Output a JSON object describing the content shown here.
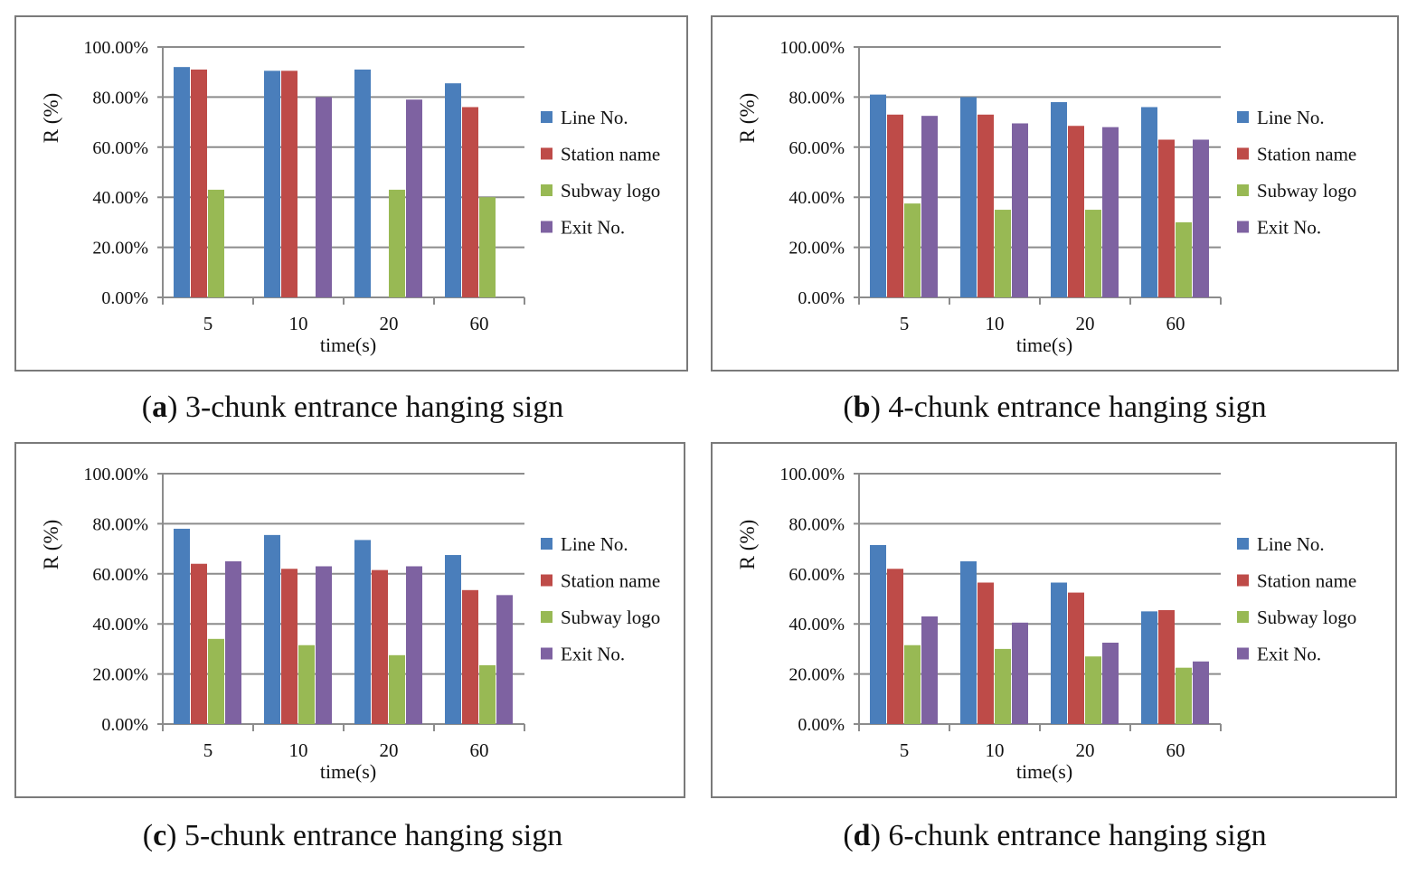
{
  "colors": {
    "line_no": "#4a7ebb",
    "station_name": "#be4b48",
    "subway_logo": "#98b954",
    "exit_no": "#7e62a1",
    "grid": "#8c8c8c",
    "frame": "#7a7a7a"
  },
  "panels": [
    {
      "caption_letter": "a",
      "caption_paren_open": "(",
      "caption_paren_close": ")",
      "caption_text": " 3-chunk entrance hanging sign",
      "chart_data": {
        "type": "bar",
        "title": "",
        "xlabel": "time(s)",
        "ylabel": "R (%)",
        "ylim": [
          0,
          100
        ],
        "yticks": [
          "0.00%",
          "20.00%",
          "40.00%",
          "60.00%",
          "80.00%",
          "100.00%"
        ],
        "categories": [
          "5",
          "10",
          "20",
          "60"
        ],
        "series": [
          {
            "name": "Line No.",
            "color": "#4a7ebb",
            "values": [
              92,
              90.5,
              91,
              85.5
            ]
          },
          {
            "name": "Station name",
            "color": "#be4b48",
            "values": [
              91,
              90.5,
              0,
              76
            ]
          },
          {
            "name": "Subway logo",
            "color": "#98b954",
            "values": [
              43,
              0,
              43,
              40
            ]
          },
          {
            "name": "Exit No.",
            "color": "#7e62a1",
            "values": [
              0,
              80,
              79,
              0
            ]
          }
        ],
        "legend": "right"
      }
    },
    {
      "caption_letter": "b",
      "caption_paren_open": "(",
      "caption_paren_close": ")",
      "caption_text": " 4-chunk entrance hanging sign",
      "chart_data": {
        "type": "bar",
        "title": "",
        "xlabel": "time(s)",
        "ylabel": "R (%)",
        "ylim": [
          0,
          100
        ],
        "yticks": [
          "0.00%",
          "20.00%",
          "40.00%",
          "60.00%",
          "80.00%",
          "100.00%"
        ],
        "categories": [
          "5",
          "10",
          "20",
          "60"
        ],
        "series": [
          {
            "name": "Line No.",
            "color": "#4a7ebb",
            "values": [
              81,
              80,
              78,
              76
            ]
          },
          {
            "name": "Station name",
            "color": "#be4b48",
            "values": [
              73,
              73,
              68.5,
              63
            ]
          },
          {
            "name": "Subway logo",
            "color": "#98b954",
            "values": [
              37.5,
              35,
              35,
              30
            ]
          },
          {
            "name": "Exit No.",
            "color": "#7e62a1",
            "values": [
              72.5,
              69.5,
              68,
              63
            ]
          }
        ],
        "legend": "right"
      }
    },
    {
      "caption_letter": "c",
      "caption_paren_open": "(",
      "caption_paren_close": ")",
      "caption_text": " 5-chunk entrance hanging sign",
      "chart_data": {
        "type": "bar",
        "title": "",
        "xlabel": "time(s)",
        "ylabel": "R (%)",
        "ylim": [
          0,
          100
        ],
        "yticks": [
          "0.00%",
          "20.00%",
          "40.00%",
          "60.00%",
          "80.00%",
          "100.00%"
        ],
        "categories": [
          "5",
          "10",
          "20",
          "60"
        ],
        "series": [
          {
            "name": "Line No.",
            "color": "#4a7ebb",
            "values": [
              78,
              75.5,
              73.5,
              67.5
            ]
          },
          {
            "name": "Station name",
            "color": "#be4b48",
            "values": [
              64,
              62,
              61.5,
              53.5
            ]
          },
          {
            "name": "Subway logo",
            "color": "#98b954",
            "values": [
              34,
              31.5,
              27.5,
              23.5
            ]
          },
          {
            "name": "Exit No.",
            "color": "#7e62a1",
            "values": [
              65,
              63,
              63,
              51.5
            ]
          }
        ],
        "legend": "right"
      }
    },
    {
      "caption_letter": "d",
      "caption_paren_open": "(",
      "caption_paren_close": ")",
      "caption_text": " 6-chunk entrance hanging sign",
      "chart_data": {
        "type": "bar",
        "title": "",
        "xlabel": "time(s)",
        "ylabel": "R (%)",
        "ylim": [
          0,
          100
        ],
        "yticks": [
          "0.00%",
          "20.00%",
          "40.00%",
          "60.00%",
          "80.00%",
          "100.00%"
        ],
        "categories": [
          "5",
          "10",
          "20",
          "60"
        ],
        "series": [
          {
            "name": "Line No.",
            "color": "#4a7ebb",
            "values": [
              71.5,
              65,
              56.5,
              45
            ]
          },
          {
            "name": "Station name",
            "color": "#be4b48",
            "values": [
              62,
              56.5,
              52.5,
              45.5
            ]
          },
          {
            "name": "Subway logo",
            "color": "#98b954",
            "values": [
              31.5,
              30,
              27,
              22.5
            ]
          },
          {
            "name": "Exit No.",
            "color": "#7e62a1",
            "values": [
              43,
              40.5,
              32.5,
              25
            ]
          }
        ],
        "legend": "right"
      }
    }
  ]
}
